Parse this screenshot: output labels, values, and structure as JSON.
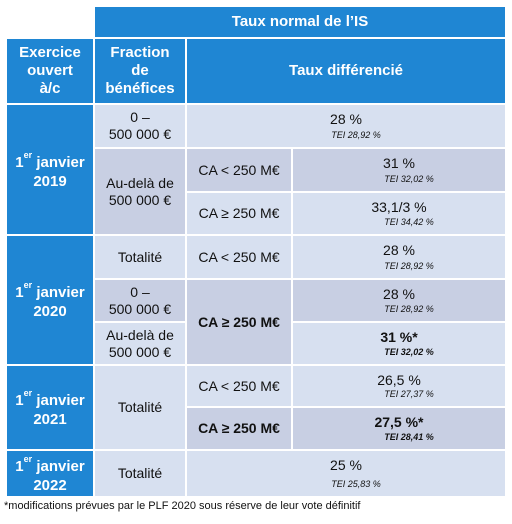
{
  "header": {
    "top": "Taux normal de l’IS",
    "col1": [
      "Exercice",
      "ouvert",
      "à/c"
    ],
    "col2": [
      "Fraction",
      "de",
      "bénéfices"
    ],
    "col3": "Taux différencié"
  },
  "years": {
    "y2019": {
      "sup": "er",
      "day": "1",
      "month": "janvier",
      "year": "2019"
    },
    "y2020": {
      "sup": "er",
      "day": "1",
      "month": "janvier",
      "year": "2020"
    },
    "y2021": {
      "sup": "er",
      "day": "1",
      "month": "janvier",
      "year": "2021"
    },
    "y2022": {
      "sup": "er",
      "day": "1",
      "month": "janvier",
      "year": "2022"
    }
  },
  "rows": {
    "r2019a": {
      "fraction": [
        "0 –",
        "500 000 €"
      ],
      "rate": "28 %",
      "tei": "TEI 28,92 %"
    },
    "r2019b": {
      "fraction": [
        "Au-delà de",
        "500 000 €"
      ],
      "ca1": "CA < 250 M€",
      "rate1": "31 %",
      "tei1": "TEI 32,02 %",
      "ca2": "CA ≥ 250 M€",
      "rate2": "33,1/3 %",
      "tei2": "TEI 34,42 %"
    },
    "r2020a": {
      "fraction": "Totalité",
      "ca": "CA < 250 M€",
      "rate": "28 %",
      "tei": "TEI 28,92 %"
    },
    "r2020b": {
      "fraction": [
        "0 –",
        "500 000 €"
      ],
      "ca": "CA ≥ 250 M€",
      "rate": "28 %",
      "tei": "TEI 28,92 %"
    },
    "r2020c": {
      "fraction": [
        "Au-delà de",
        "500 000 €"
      ],
      "rate": "31 %*",
      "tei": "TEI 32,02 %"
    },
    "r2021": {
      "fraction": "Totalité",
      "ca1": "CA < 250 M€",
      "rate1": "26,5 %",
      "tei1": "TEI 27,37 %",
      "ca2": "CA ≥ 250 M€",
      "rate2": "27,5 %*",
      "tei2": "TEI 28,41 %"
    },
    "r2022": {
      "fraction": "Totalité",
      "rate": "25 %",
      "tei": "TEI 25,83 %"
    }
  },
  "footnote": "*modifications prévues par le PLF 2020 sous réserve de leur vote définitif",
  "colors": {
    "header_blue": "#1f86d3",
    "light_row": "#d7e0f0",
    "mid_row": "#c8cfe3"
  }
}
